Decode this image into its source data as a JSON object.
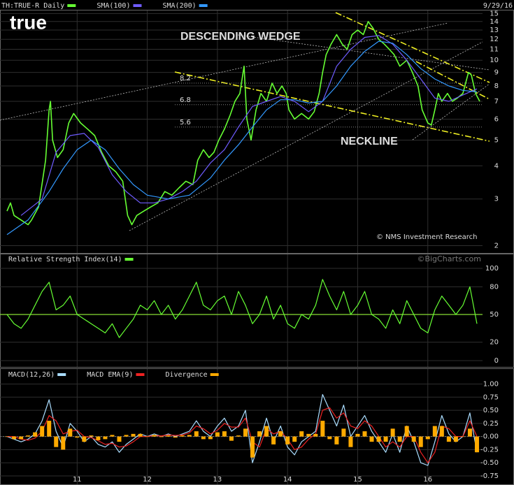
{
  "chart_data": [
    {
      "type": "line",
      "yscale": "log",
      "date": "9/29/16",
      "logo": "true",
      "annotations": [
        "DESCENDING WEDGE",
        "NECKLINE",
        "© NMS Investment Research"
      ],
      "levels": [
        8.2,
        6.8,
        5.6
      ],
      "xlim": [
        9.9,
        16.78
      ],
      "xticks": [
        11,
        12,
        13,
        14,
        15,
        16
      ],
      "ylim": [
        1.9,
        15.5
      ],
      "yticks": [
        2,
        3,
        4,
        5,
        6,
        7,
        8,
        9,
        10,
        11,
        12,
        13,
        14,
        15
      ],
      "series": [
        {
          "name": "TH:TRUE-R Daily",
          "color": "#66ff33",
          "x": [
            10.0,
            10.05,
            10.1,
            10.2,
            10.3,
            10.35,
            10.45,
            10.55,
            10.6,
            10.62,
            10.65,
            10.72,
            10.8,
            10.88,
            10.95,
            11.05,
            11.15,
            11.25,
            11.35,
            11.45,
            11.55,
            11.65,
            11.72,
            11.78,
            11.85,
            11.95,
            12.05,
            12.15,
            12.25,
            12.35,
            12.45,
            12.55,
            12.65,
            12.72,
            12.8,
            12.88,
            12.95,
            13.02,
            13.1,
            13.18,
            13.25,
            13.32,
            13.38,
            13.42,
            13.48,
            13.55,
            13.62,
            13.7,
            13.78,
            13.85,
            13.92,
            13.98,
            14.02,
            14.1,
            14.2,
            14.3,
            14.38,
            14.45,
            14.5,
            14.55,
            14.62,
            14.7,
            14.78,
            14.85,
            14.92,
            15.0,
            15.08,
            15.15,
            15.22,
            15.3,
            15.38,
            15.45,
            15.52,
            15.6,
            15.7,
            15.78,
            15.86,
            15.92,
            16.0,
            16.05,
            16.1,
            16.15,
            16.2,
            16.28,
            16.35,
            16.42,
            16.5,
            16.58,
            16.62,
            16.68,
            16.74
          ],
          "values": [
            2.7,
            2.9,
            2.6,
            2.5,
            2.4,
            2.5,
            2.8,
            4.2,
            6.5,
            7,
            5,
            4.3,
            4.6,
            5.8,
            6.3,
            5.8,
            5.5,
            5.2,
            4.5,
            4.0,
            3.8,
            3.5,
            2.6,
            2.4,
            2.6,
            2.7,
            2.8,
            2.9,
            3.2,
            3.1,
            3.3,
            3.5,
            3.4,
            4.2,
            4.6,
            4.3,
            4.5,
            5.0,
            5.5,
            6.2,
            7.0,
            7.5,
            9.5,
            6.0,
            5.0,
            6.5,
            7.5,
            7.0,
            8.2,
            7.5,
            8.0,
            7.5,
            6.5,
            6.0,
            6.3,
            6.0,
            6.4,
            7.5,
            9.0,
            10.5,
            11.5,
            12.5,
            11.5,
            11.0,
            12.5,
            13.0,
            12.5,
            14.0,
            13.2,
            12.0,
            11.5,
            11.0,
            10.5,
            9.5,
            10.0,
            9.0,
            8.0,
            6.5,
            5.8,
            5.7,
            6.5,
            7.5,
            7.0,
            7.5,
            7.0,
            7.2,
            7.5,
            9.0,
            8.8,
            7.5,
            7.0
          ]
        },
        {
          "name": "SMA(100)",
          "color": "#6f5cff",
          "x": [
            10.2,
            10.5,
            10.7,
            10.9,
            11.1,
            11.3,
            11.5,
            11.7,
            11.9,
            12.1,
            12.3,
            12.5,
            12.7,
            12.9,
            13.1,
            13.3,
            13.5,
            13.7,
            13.9,
            14.1,
            14.3,
            14.5,
            14.7,
            14.9,
            15.1,
            15.3,
            15.5,
            15.7,
            15.9,
            16.1,
            16.3,
            16.5,
            16.7
          ],
          "values": [
            2.6,
            3.0,
            4.5,
            5.2,
            5.3,
            4.7,
            3.7,
            3.2,
            2.9,
            2.9,
            3.0,
            3.2,
            3.5,
            4.1,
            4.6,
            5.6,
            6.7,
            7.0,
            7.3,
            7.0,
            6.4,
            7.0,
            9.5,
            11.0,
            12.2,
            12.4,
            11.5,
            10.0,
            8.5,
            7.2,
            7.0,
            7.4,
            7.8
          ]
        },
        {
          "name": "SMA(200)",
          "color": "#3399ff",
          "x": [
            10.0,
            10.3,
            10.6,
            10.8,
            11.0,
            11.2,
            11.4,
            11.6,
            11.8,
            12.0,
            12.3,
            12.6,
            12.9,
            13.1,
            13.3,
            13.5,
            13.7,
            13.9,
            14.1,
            14.3,
            14.5,
            14.7,
            14.9,
            15.1,
            15.3,
            15.5,
            15.7,
            15.9,
            16.1,
            16.3,
            16.5,
            16.7
          ],
          "values": [
            2.2,
            2.5,
            3.2,
            3.9,
            4.6,
            5.0,
            4.6,
            3.9,
            3.4,
            3.1,
            3.0,
            3.1,
            3.6,
            4.2,
            4.8,
            5.6,
            6.5,
            7.1,
            7.1,
            6.9,
            7.0,
            8.0,
            9.5,
            10.8,
            11.8,
            11.6,
            10.5,
            9.3,
            8.5,
            8.0,
            7.7,
            7.6
          ]
        }
      ]
    },
    {
      "type": "line",
      "watermark": "©BigCharts.com",
      "xlim": [
        9.9,
        16.78
      ],
      "xticks": [
        11,
        12,
        13,
        14,
        15,
        16
      ],
      "ylim": [
        -3,
        103
      ],
      "yticks": [
        0,
        20,
        50,
        80,
        100
      ],
      "x": [
        10.0,
        10.1,
        10.2,
        10.3,
        10.4,
        10.5,
        10.6,
        10.7,
        10.8,
        10.9,
        11.0,
        11.1,
        11.2,
        11.3,
        11.4,
        11.5,
        11.6,
        11.7,
        11.8,
        11.9,
        12.0,
        12.1,
        12.2,
        12.3,
        12.4,
        12.5,
        12.6,
        12.7,
        12.8,
        12.9,
        13.0,
        13.1,
        13.2,
        13.3,
        13.4,
        13.5,
        13.6,
        13.7,
        13.8,
        13.9,
        14.0,
        14.1,
        14.2,
        14.3,
        14.4,
        14.5,
        14.6,
        14.7,
        14.8,
        14.9,
        15.0,
        15.1,
        15.2,
        15.3,
        15.4,
        15.5,
        15.6,
        15.7,
        15.8,
        15.9,
        16.0,
        16.1,
        16.2,
        16.3,
        16.4,
        16.5,
        16.6,
        16.7
      ],
      "series": [
        {
          "name": "Relative Strength Index(14)",
          "color": "#66ff33",
          "values": [
            50,
            40,
            35,
            45,
            60,
            75,
            85,
            55,
            60,
            70,
            50,
            45,
            40,
            35,
            30,
            40,
            25,
            35,
            45,
            60,
            55,
            65,
            50,
            60,
            45,
            55,
            70,
            85,
            60,
            55,
            65,
            70,
            50,
            75,
            60,
            40,
            50,
            70,
            45,
            60,
            40,
            35,
            50,
            45,
            60,
            88,
            70,
            55,
            75,
            50,
            60,
            75,
            50,
            45,
            35,
            55,
            40,
            65,
            50,
            35,
            30,
            55,
            70,
            60,
            50,
            60,
            80,
            40
          ]
        }
      ]
    },
    {
      "type": "line",
      "xlim": [
        9.9,
        16.78
      ],
      "xticks": [
        11,
        12,
        13,
        14,
        15,
        16
      ],
      "ylim": [
        -0.87,
        1.06
      ],
      "yticks": [
        {
          "value": 1,
          "label": "1.00"
        },
        0.75,
        {
          "value": 0.5,
          "label": "0.50"
        },
        0.25,
        {
          "value": 0,
          "label": "0.00"
        },
        -0.25,
        {
          "value": -0.5,
          "label": "-0.50"
        },
        -0.75
      ],
      "x": [
        10.0,
        10.1,
        10.2,
        10.3,
        10.4,
        10.5,
        10.6,
        10.7,
        10.8,
        10.9,
        11.0,
        11.1,
        11.2,
        11.3,
        11.4,
        11.5,
        11.6,
        11.7,
        11.8,
        11.9,
        12.0,
        12.1,
        12.2,
        12.3,
        12.4,
        12.5,
        12.6,
        12.7,
        12.8,
        12.9,
        13.0,
        13.1,
        13.2,
        13.3,
        13.4,
        13.5,
        13.6,
        13.7,
        13.8,
        13.9,
        14.0,
        14.1,
        14.2,
        14.3,
        14.4,
        14.5,
        14.6,
        14.7,
        14.8,
        14.9,
        15.0,
        15.1,
        15.2,
        15.3,
        15.4,
        15.5,
        15.6,
        15.7,
        15.8,
        15.9,
        16.0,
        16.1,
        16.2,
        16.3,
        16.4,
        16.5,
        16.6,
        16.7
      ],
      "series": [
        {
          "name": "MACD(12,26)",
          "color": "#aaddff",
          "values": [
            0,
            -0.05,
            -0.1,
            -0.05,
            0.05,
            0.3,
            0.7,
            0.1,
            -0.2,
            0.25,
            0.1,
            -0.1,
            0,
            -0.15,
            -0.2,
            -0.1,
            -0.3,
            -0.15,
            -0.05,
            0.05,
            0,
            0.05,
            0,
            0.05,
            0,
            0.05,
            0.1,
            0.3,
            0.1,
            0,
            0.2,
            0.35,
            0.1,
            0.2,
            0.5,
            -0.5,
            -0.1,
            0.35,
            -0.1,
            0.2,
            -0.2,
            -0.35,
            -0.1,
            0,
            0.1,
            0.8,
            0.5,
            0.2,
            0.6,
            0,
            0.2,
            0.4,
            0.1,
            -0.1,
            -0.3,
            0.05,
            -0.3,
            0.2,
            -0.1,
            -0.5,
            -0.55,
            -0.1,
            0.4,
            0.05,
            -0.1,
            0,
            0.45,
            -0.3
          ]
        },
        {
          "name": "MACD EMA(9)",
          "color": "#ee2222",
          "values": [
            0,
            0,
            -0.05,
            -0.07,
            -0.03,
            0.1,
            0.4,
            0.3,
            0.05,
            0.1,
            0.12,
            0,
            -0.02,
            -0.08,
            -0.15,
            -0.13,
            -0.2,
            -0.18,
            -0.1,
            0,
            0,
            0.02,
            0.01,
            0.03,
            0.02,
            0.03,
            0.07,
            0.2,
            0.15,
            0.05,
            0.12,
            0.25,
            0.18,
            0.18,
            0.35,
            -0.1,
            -0.2,
            0.15,
            0.05,
            0.1,
            -0.05,
            -0.25,
            -0.2,
            -0.05,
            0.05,
            0.5,
            0.55,
            0.35,
            0.45,
            0.2,
            0.15,
            0.3,
            0.2,
            0,
            -0.2,
            -0.1,
            -0.2,
            0,
            0,
            -0.3,
            -0.5,
            -0.3,
            0.2,
            0.15,
            0,
            0,
            0.3,
            0
          ]
        },
        {
          "name": "Divergence",
          "color": "#ffaa00",
          "type": "bar",
          "values": [
            0,
            -0.05,
            -0.05,
            0.02,
            0.08,
            0.2,
            0.3,
            -0.2,
            -0.25,
            0.15,
            -0.02,
            -0.1,
            0.02,
            -0.07,
            -0.05,
            0.03,
            -0.1,
            0.03,
            0.05,
            0.05,
            0,
            0.03,
            -0.01,
            0.02,
            -0.02,
            0.02,
            0.03,
            0.1,
            -0.05,
            -0.05,
            0.08,
            0.1,
            -0.08,
            0.02,
            0.15,
            -0.4,
            0.1,
            0.2,
            -0.15,
            0.1,
            -0.15,
            -0.1,
            0.1,
            0.05,
            0.05,
            0.3,
            -0.05,
            -0.15,
            0.15,
            -0.2,
            0.05,
            0.1,
            -0.1,
            -0.1,
            -0.1,
            0.15,
            -0.1,
            0.2,
            -0.1,
            -0.2,
            -0.05,
            0.2,
            0.2,
            -0.1,
            -0.1,
            0,
            0.15,
            -0.3
          ]
        }
      ]
    }
  ]
}
